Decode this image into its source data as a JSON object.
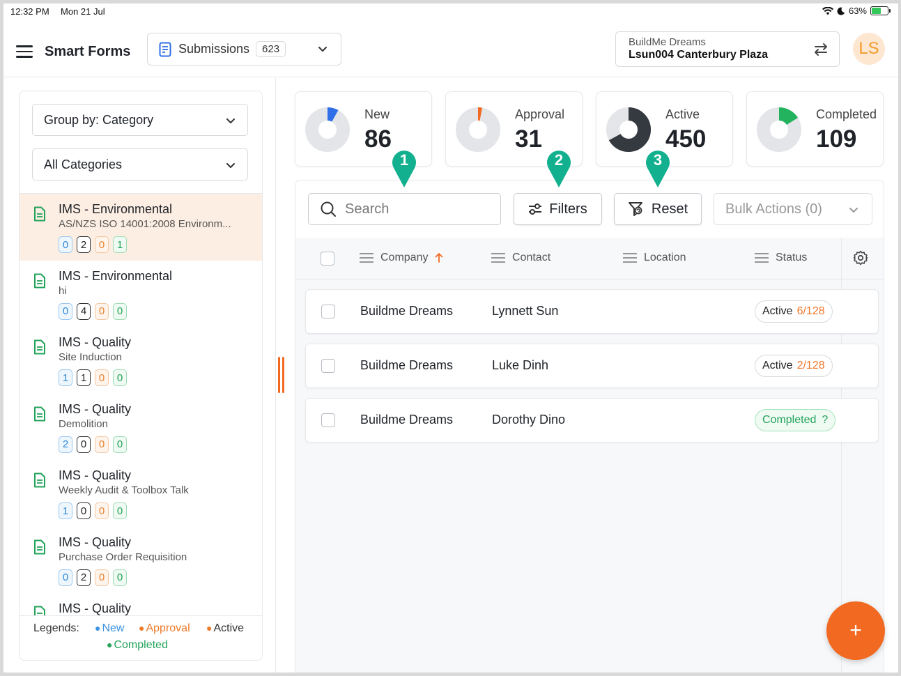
{
  "status_bar": {
    "time": "12:32 PM",
    "date": "Mon 21 Jul",
    "battery": "63%",
    "battery_level": 0.63
  },
  "header": {
    "app_title": "Smart Forms",
    "view_selector": {
      "label": "Submissions",
      "count": "623"
    },
    "project": {
      "company": "BuildMe Dreams",
      "site": "Lsun004 Canterbury Plaza"
    },
    "avatar_initials": "LS"
  },
  "sidebar": {
    "group_by": "Group by: Category",
    "category_filter": "All Categories",
    "items": [
      {
        "title": "IMS - Environmental",
        "subtitle": "AS/NZS ISO 14001:2008 Environm...",
        "new": "0",
        "active": "2",
        "approval": "0",
        "completed": "1"
      },
      {
        "title": "IMS - Environmental",
        "subtitle": "hi",
        "new": "0",
        "active": "4",
        "approval": "0",
        "completed": "0"
      },
      {
        "title": "IMS - Quality",
        "subtitle": "Site Induction",
        "new": "1",
        "active": "1",
        "approval": "0",
        "completed": "0"
      },
      {
        "title": "IMS - Quality",
        "subtitle": "Demolition",
        "new": "2",
        "active": "0",
        "approval": "0",
        "completed": "0"
      },
      {
        "title": "IMS - Quality",
        "subtitle": "Weekly Audit & Toolbox Talk",
        "new": "1",
        "active": "0",
        "approval": "0",
        "completed": "0"
      },
      {
        "title": "IMS - Quality",
        "subtitle": "Purchase Order Requisition",
        "new": "0",
        "active": "2",
        "approval": "0",
        "completed": "0"
      },
      {
        "title": "IMS - Quality"
      }
    ],
    "legend": {
      "label": "Legends:",
      "new": "New",
      "approval": "Approval",
      "active": "Active",
      "completed": "Completed"
    }
  },
  "stats": [
    {
      "label": "New",
      "value": "86",
      "fraction": 0.08,
      "color": "#2f6fe8"
    },
    {
      "label": "Approval",
      "value": "31",
      "fraction": 0.03,
      "color": "#f26a21"
    },
    {
      "label": "Active",
      "value": "450",
      "fraction": 0.67,
      "color": "#343a40"
    },
    {
      "label": "Completed",
      "value": "109",
      "fraction": 0.16,
      "color": "#23b25e"
    }
  ],
  "pins": [
    "1",
    "2",
    "3"
  ],
  "toolbar": {
    "search_placeholder": "Search",
    "filters": "Filters",
    "reset": "Reset",
    "bulk_actions": "Bulk Actions (0)"
  },
  "table": {
    "columns": [
      "Company",
      "Contact",
      "Location",
      "Status"
    ],
    "rows": [
      {
        "company": "Buildme Dreams",
        "contact": "Lynnett Sun",
        "status": "Active",
        "progress": "6/128"
      },
      {
        "company": "Buildme Dreams",
        "contact": "Luke Dinh",
        "status": "Active",
        "progress": "2/128"
      },
      {
        "company": "Buildme Dreams",
        "contact": "Dorothy Dino",
        "status": "Completed",
        "progress": "?"
      }
    ]
  },
  "fab_label": "+",
  "colors": {
    "accent": "#f26a21",
    "new": "#2e8ad8",
    "approval": "#e9832f",
    "completed": "#23a35a",
    "pin": "#12b08e"
  }
}
